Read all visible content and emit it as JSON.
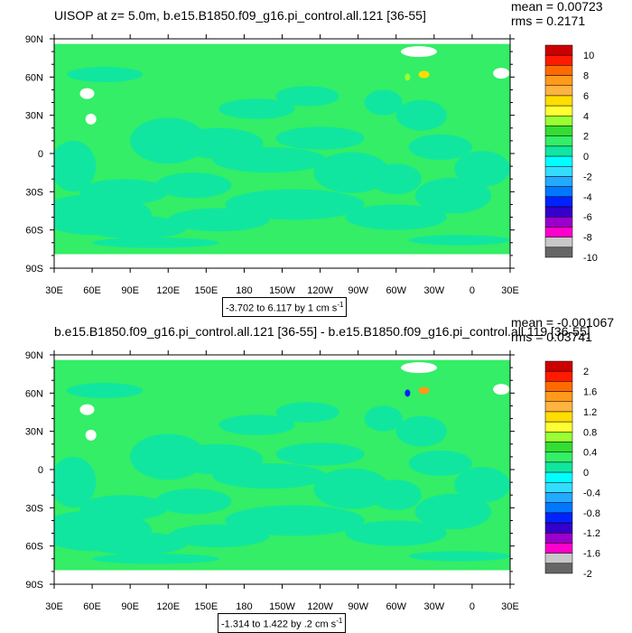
{
  "chart_data": [
    {
      "type": "heatmap",
      "title": "UISOP at z=   5.0m, b.e15.B1850.f09_g16.pi_control.all.121 [36-55]",
      "stats": {
        "mean": "mean = 0.00723",
        "rms": "rms = 0.2171"
      },
      "range_note": {
        "text": "-3.702 to 6.117 by 1 cm s",
        "sup": "-1"
      },
      "x_ticks": [
        "30E",
        "60E",
        "90E",
        "120E",
        "150E",
        "180",
        "150W",
        "120W",
        "90W",
        "60W",
        "30W",
        "0",
        "30E"
      ],
      "y_ticks": [
        "90N",
        "60N",
        "30N",
        "0",
        "30S",
        "60S",
        "90S"
      ],
      "x_range_deg": [
        30,
        390
      ],
      "y_range_deg": [
        -90,
        90
      ],
      "colorbar_labels": [
        "10",
        "8",
        "6",
        "4",
        "2",
        "0",
        "-2",
        "-4",
        "-6",
        "-8",
        "-10"
      ],
      "colors": [
        "#cc0000",
        "#ff1a00",
        "#ff6a00",
        "#ff9a1a",
        "#ffb340",
        "#ffdd00",
        "#ffff33",
        "#99ff33",
        "#33dd33",
        "#33ee66",
        "#11e6a0",
        "#00ffff",
        "#33ddff",
        "#22aaff",
        "#0077ff",
        "#0022ff",
        "#3300cc",
        "#9900cc",
        "#ff00cc",
        "#c8c8c8",
        "#666666"
      ],
      "field_colors": {
        "dominant": "#33ee66",
        "secondary": "#11e6a0"
      }
    },
    {
      "type": "heatmap",
      "title": "b.e15.B1850.f09_g16.pi_control.all.121 [36-55] - b.e15.B1850.f09_g16.pi_control.all.119 [36-55]",
      "stats": {
        "mean": "mean = -0.001067",
        "rms": "rms = 0.03741"
      },
      "range_note": {
        "text": "-1.314 to 1.422 by .2 cm s",
        "sup": "-1"
      },
      "x_ticks": [
        "30E",
        "60E",
        "90E",
        "120E",
        "150E",
        "180",
        "150W",
        "120W",
        "90W",
        "60W",
        "30W",
        "0",
        "30E"
      ],
      "y_ticks": [
        "90N",
        "60N",
        "30N",
        "0",
        "30S",
        "60S",
        "90S"
      ],
      "x_range_deg": [
        30,
        390
      ],
      "y_range_deg": [
        -90,
        90
      ],
      "colorbar_labels": [
        "2",
        "1.6",
        "1.2",
        "0.8",
        "0.4",
        "0",
        "-0.4",
        "-0.8",
        "-1.2",
        "-1.6",
        "-2"
      ],
      "colors": [
        "#cc0000",
        "#ff1a00",
        "#ff6a00",
        "#ff9a1a",
        "#ffb340",
        "#ffdd00",
        "#ffff33",
        "#99ff33",
        "#33dd33",
        "#33ee66",
        "#11e6a0",
        "#00ffff",
        "#33ddff",
        "#22aaff",
        "#0077ff",
        "#0022ff",
        "#3300cc",
        "#9900cc",
        "#ff00cc",
        "#c8c8c8",
        "#666666"
      ],
      "field_colors": {
        "dominant": "#33ee66",
        "secondary": "#11e6a0"
      }
    }
  ]
}
